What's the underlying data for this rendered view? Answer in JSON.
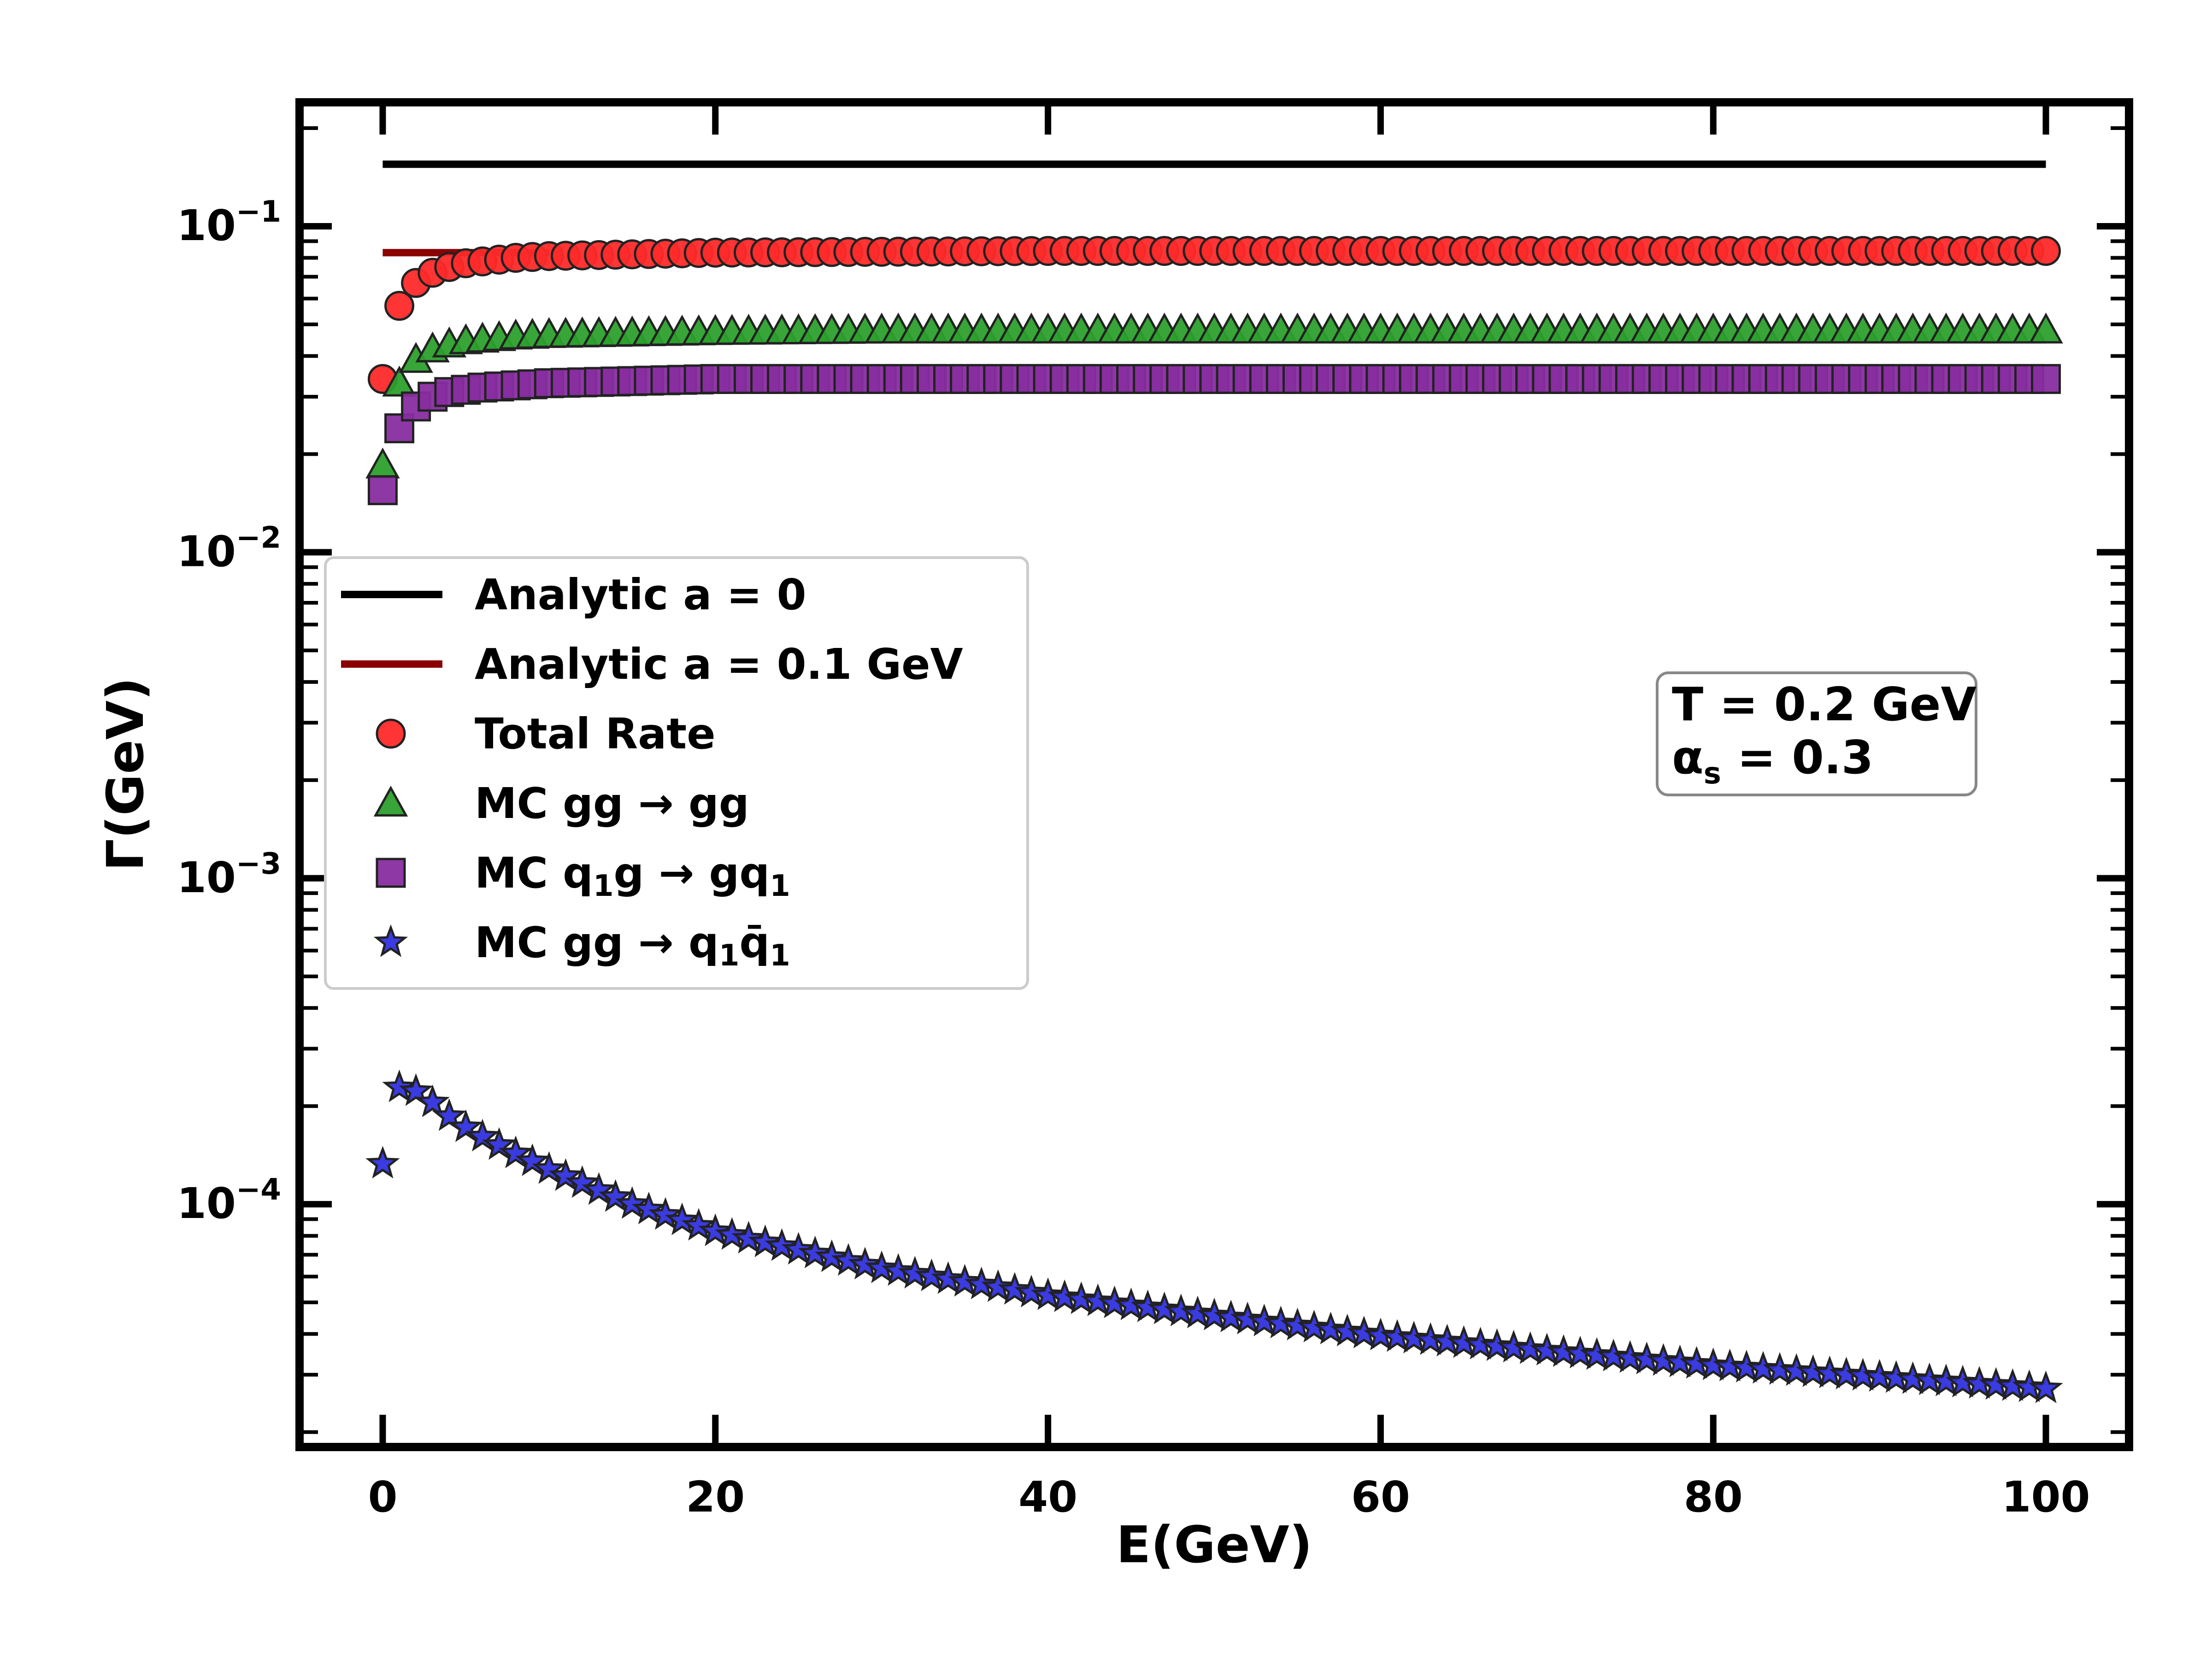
{
  "chart_data": {
    "type": "scatter",
    "xlabel": "E(GeV)",
    "ylabel": "Γ(GeV)",
    "xlim": [
      -5,
      105
    ],
    "ylim": [
      1.8e-05,
      0.24
    ],
    "yscale": "log",
    "x_ticks": [
      {
        "value": 0,
        "label": "0"
      },
      {
        "value": 20,
        "label": "20"
      },
      {
        "value": 40,
        "label": "40"
      },
      {
        "value": 60,
        "label": "60"
      },
      {
        "value": 80,
        "label": "80"
      },
      {
        "value": 100,
        "label": "100"
      }
    ],
    "y_ticks": [
      {
        "value": 0.1,
        "base": "10",
        "exp": "−1"
      },
      {
        "value": 0.01,
        "base": "10",
        "exp": "−2"
      },
      {
        "value": 0.001,
        "base": "10",
        "exp": "−3"
      },
      {
        "value": 0.0001,
        "base": "10",
        "exp": "−4"
      }
    ],
    "annotation": {
      "line1": "T = 0.2 GeV",
      "line2_base": "α",
      "line2_sub": "s",
      "line2_rest": " = 0.3"
    },
    "series": [
      {
        "name": "Analytic a = 0",
        "kind": "line",
        "color": "#000000",
        "x": [
          0,
          100
        ],
        "y": [
          0.155,
          0.155
        ],
        "legend": [
          {
            "t": "Analytic a = 0"
          }
        ]
      },
      {
        "name": "Analytic a = 0.1 GeV",
        "kind": "line",
        "color": "#8b0000",
        "x": [
          0,
          10
        ],
        "y": [
          0.083,
          0.083
        ],
        "legend": [
          {
            "t": "Analytic a = 0.1 GeV"
          }
        ]
      },
      {
        "name": "Total Rate",
        "kind": "marker",
        "marker": "circle",
        "color": "#ff2a2a",
        "x": [
          0,
          1,
          2,
          3,
          4,
          5,
          6,
          8,
          10,
          15,
          20,
          30,
          40,
          60,
          80,
          100
        ],
        "y": [
          0.034,
          0.057,
          0.067,
          0.072,
          0.075,
          0.077,
          0.078,
          0.08,
          0.081,
          0.082,
          0.083,
          0.0835,
          0.084,
          0.084,
          0.084,
          0.084
        ],
        "legend": [
          {
            "t": "Total Rate"
          }
        ]
      },
      {
        "name": "MC gg → gg",
        "kind": "marker",
        "marker": "triangle",
        "color": "#2ca02c",
        "x": [
          0,
          1,
          2,
          3,
          4,
          5,
          6,
          8,
          10,
          15,
          20,
          30,
          40,
          60,
          80,
          100
        ],
        "y": [
          0.0185,
          0.033,
          0.039,
          0.042,
          0.0435,
          0.0445,
          0.045,
          0.046,
          0.0465,
          0.047,
          0.0475,
          0.048,
          0.048,
          0.048,
          0.048,
          0.048
        ],
        "legend": [
          {
            "t": "MC gg"
          },
          {
            "t": " → ",
            "font": "DejaVu Sans"
          },
          {
            "t": "gg"
          }
        ]
      },
      {
        "name": "MC q1g → gq1",
        "kind": "marker",
        "marker": "square",
        "color": "#882da0",
        "x": [
          0,
          1,
          2,
          3,
          4,
          5,
          6,
          8,
          10,
          15,
          20,
          30,
          40,
          60,
          80,
          100
        ],
        "y": [
          0.0155,
          0.024,
          0.028,
          0.03,
          0.031,
          0.0315,
          0.032,
          0.0325,
          0.033,
          0.0335,
          0.034,
          0.034,
          0.034,
          0.034,
          0.034,
          0.034
        ],
        "legend": [
          {
            "t": "MC q"
          },
          {
            "t": "1",
            "sub": true
          },
          {
            "t": "g"
          },
          {
            "t": " → ",
            "font": "DejaVu Sans"
          },
          {
            "t": "gq"
          },
          {
            "t": "1",
            "sub": true
          }
        ]
      },
      {
        "name": "MC gg → q1q̄1",
        "kind": "marker",
        "marker": "star",
        "color": "#3030e0",
        "x": [
          0,
          1,
          2,
          3,
          4,
          5,
          6,
          8,
          10,
          15,
          20,
          30,
          40,
          50,
          60,
          70,
          80,
          90,
          100
        ],
        "y": [
          0.000133,
          0.000228,
          0.000222,
          0.000205,
          0.000186,
          0.000172,
          0.000161,
          0.000143,
          0.000128,
          0.0001,
          8.25e-05,
          6.35e-05,
          5.25e-05,
          4.55e-05,
          3.95e-05,
          3.55e-05,
          3.2e-05,
          2.95e-05,
          2.72e-05
        ],
        "legend": [
          {
            "t": "MC gg"
          },
          {
            "t": " → ",
            "font": "DejaVu Sans"
          },
          {
            "t": "q"
          },
          {
            "t": "1",
            "sub": true
          },
          {
            "t": "q̄"
          },
          {
            "t": "1",
            "sub": true
          }
        ]
      }
    ]
  }
}
